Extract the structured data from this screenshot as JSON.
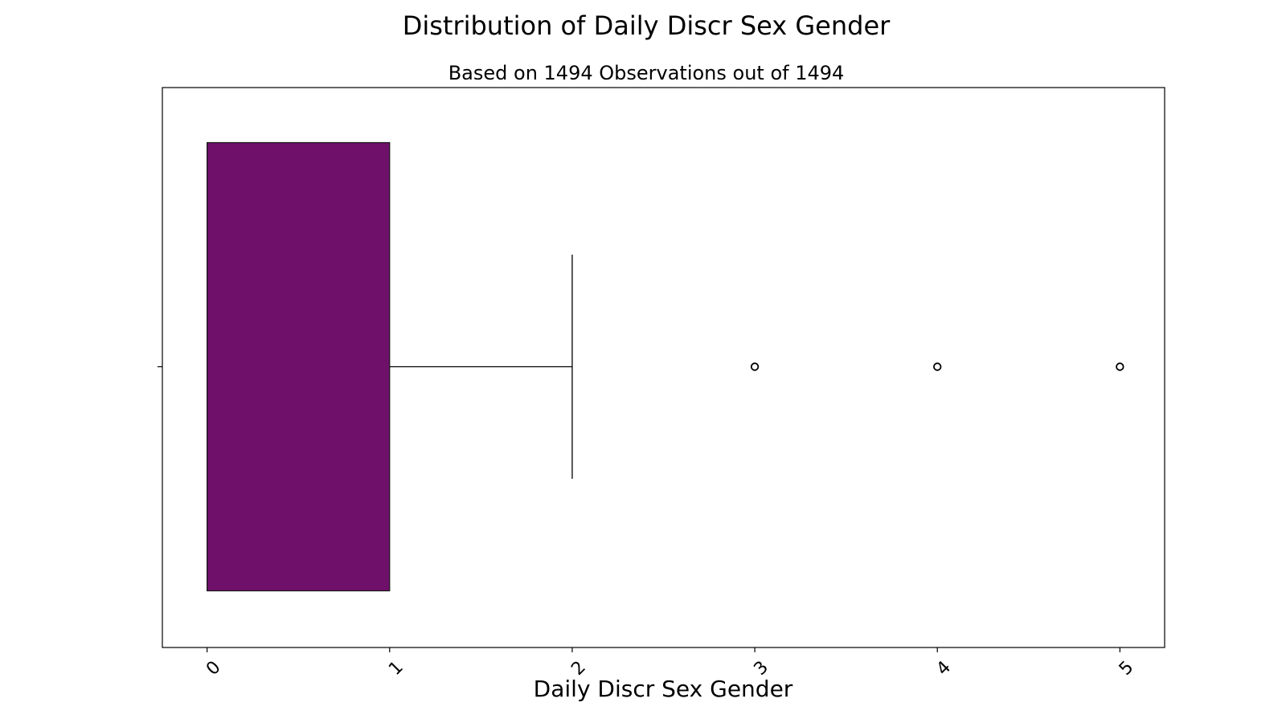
{
  "chart_data": {
    "type": "boxplot",
    "orientation": "horizontal",
    "title": "Distribution of Daily Discr Sex Gender",
    "subtitle": "Based on 1494 Observations out of 1494",
    "xlabel": "Daily Discr Sex Gender",
    "ylabel": "",
    "xlim": [
      -0.245,
      5.245
    ],
    "xticks": [
      0,
      1,
      2,
      3,
      4,
      5
    ],
    "xtick_labels": [
      "0",
      "1",
      "2",
      "3",
      "4",
      "5"
    ],
    "xtick_rotation": -45,
    "grid": false,
    "box": {
      "q1": 0,
      "median": 0,
      "q3": 1,
      "whisker_low": 0,
      "whisker_high": 2,
      "outliers": [
        3,
        4,
        5
      ]
    },
    "colors": {
      "box_fill": "#6f106b",
      "box_edge": "#1a1a1a",
      "line": "#000000"
    }
  }
}
